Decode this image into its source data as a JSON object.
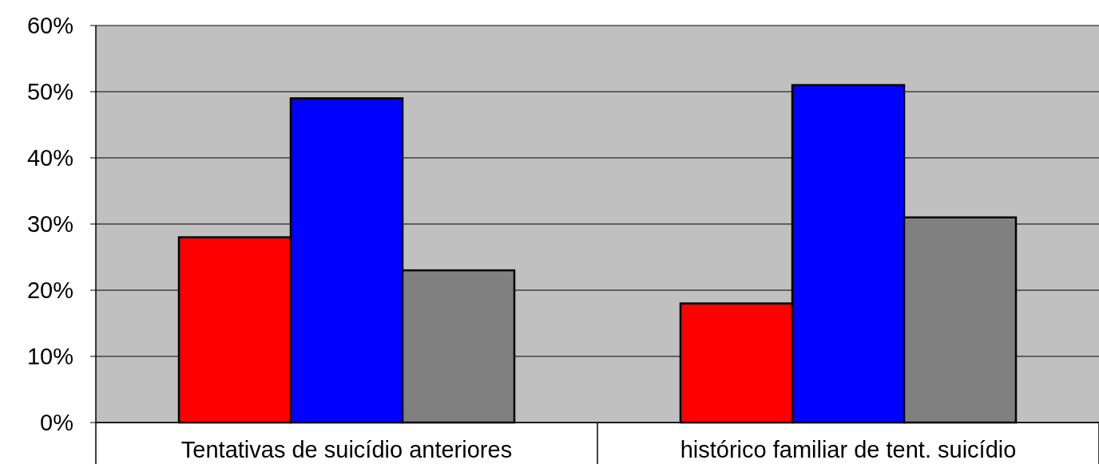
{
  "chart_data": {
    "type": "bar",
    "categories": [
      "Tentativas de suicídio anteriores",
      "histórico familiar de tent. suicídio"
    ],
    "series": [
      {
        "color": "#ff0000",
        "values": [
          28,
          18
        ]
      },
      {
        "color": "#0000ff",
        "values": [
          49,
          51
        ]
      },
      {
        "color": "#808080",
        "values": [
          23,
          31
        ]
      }
    ],
    "ylim": [
      0,
      60
    ],
    "yticks": [
      {
        "value": 0,
        "label": "0%"
      },
      {
        "value": 10,
        "label": "10%"
      },
      {
        "value": 20,
        "label": "20%"
      },
      {
        "value": 30,
        "label": "30%"
      },
      {
        "value": 40,
        "label": "40%"
      },
      {
        "value": 50,
        "label": "50%"
      },
      {
        "value": 60,
        "label": "60%"
      }
    ],
    "grid": "y"
  }
}
